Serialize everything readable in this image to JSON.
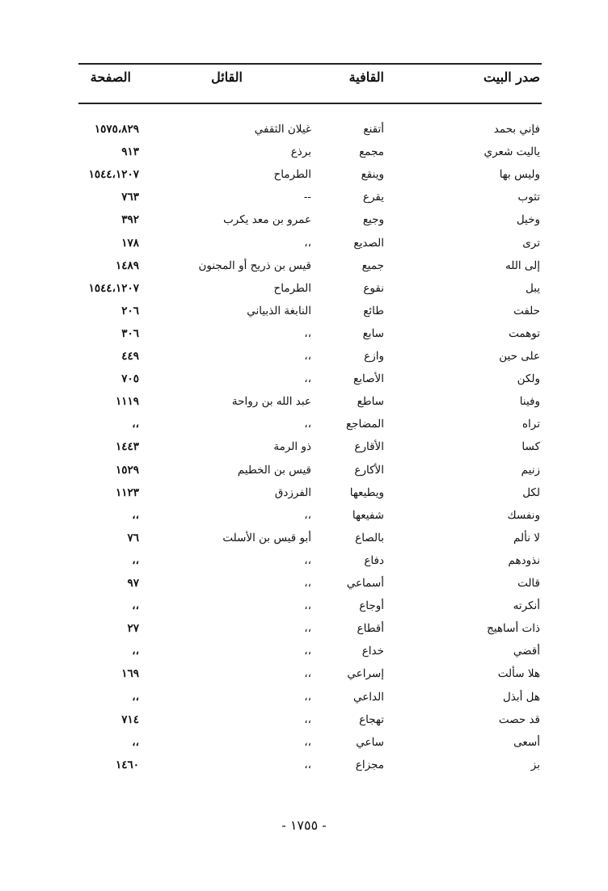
{
  "headers": {
    "verse_opening": "صدر البيت",
    "rhyme": "القافية",
    "poet": "القائل",
    "page": "الصفحة"
  },
  "rows": [
    {
      "verse": "فإني بحمد",
      "rhyme": "أتقنع",
      "poet": "غيلان الثقفي",
      "page": "١٥٧٥،٨٢٩"
    },
    {
      "verse": "ياليت شعري",
      "rhyme": "مجمع",
      "poet": "برذع",
      "page": "٩١٣"
    },
    {
      "verse": "وليس بها",
      "rhyme": "وينقع",
      "poet": "الطرماح",
      "page": "١٥٤٤،١٢٠٧"
    },
    {
      "verse": "تثوب",
      "rhyme": "يقرع",
      "poet": "--",
      "page": "٧٦٣"
    },
    {
      "verse": "وخيل",
      "rhyme": "وجيع",
      "poet": "عمرو بن معد يكرب",
      "page": "٣٩٢"
    },
    {
      "verse": "ترى",
      "rhyme": "الصديع",
      "poet": "،،",
      "page": "١٧٨"
    },
    {
      "verse": "إلى الله",
      "rhyme": "جميع",
      "poet": "قيس بن ذريح أو المجنون",
      "page": "١٤٨٩"
    },
    {
      "verse": "يبل",
      "rhyme": "نقوع",
      "poet": "الطرماح",
      "page": "١٥٤٤،١٢٠٧"
    },
    {
      "verse": "حلفت",
      "rhyme": "طائع",
      "poet": "النابغة الذبياني",
      "page": "٢٠٦"
    },
    {
      "verse": "توهمت",
      "rhyme": "سابع",
      "poet": "،،",
      "page": "٣٠٦"
    },
    {
      "verse": "على حين",
      "rhyme": "وازع",
      "poet": "،،",
      "page": "٤٤٩"
    },
    {
      "verse": "ولكن",
      "rhyme": "الأصابع",
      "poet": "،،",
      "page": "٧٠٥"
    },
    {
      "verse": "وفينا",
      "rhyme": "ساطع",
      "poet": "عبد الله بن رواحة",
      "page": "١١١٩"
    },
    {
      "verse": "تراه",
      "rhyme": "المضاجع",
      "poet": "،،",
      "page": "،،"
    },
    {
      "verse": "كسا",
      "rhyme": "الأقارع",
      "poet": "ذو الرمة",
      "page": "١٤٤٣"
    },
    {
      "verse": "زنيم",
      "rhyme": "الأكارع",
      "poet": "قيس بن الخطيم",
      "page": "١٥٢٩"
    },
    {
      "verse": "لكل",
      "rhyme": "ويطيعها",
      "poet": "الفرزدق",
      "page": "١١٢٣"
    },
    {
      "verse": "ونفسك",
      "rhyme": "شفيعها",
      "poet": "،،",
      "page": "،،"
    },
    {
      "verse": "لا نألم",
      "rhyme": "بالصاع",
      "poet": "أبو قيس بن الأسلت",
      "page": "٧٦"
    },
    {
      "verse": "نذودهم",
      "rhyme": "دفاع",
      "poet": "،،",
      "page": "،،"
    },
    {
      "verse": "قالت",
      "rhyme": "أسماعي",
      "poet": "،،",
      "page": "٩٧"
    },
    {
      "verse": "أنكرته",
      "rhyme": "أوجاع",
      "poet": "،،",
      "page": "،،"
    },
    {
      "verse": "ذات أساهيج",
      "rhyme": "أقطاع",
      "poet": "،،",
      "page": "٢٧"
    },
    {
      "verse": "أقضي",
      "rhyme": "خداع",
      "poet": "،،",
      "page": "،،"
    },
    {
      "verse": "هلا سألت",
      "rhyme": "إسراعي",
      "poet": "،،",
      "page": "١٦٩"
    },
    {
      "verse": "هل أبذل",
      "rhyme": "الداعي",
      "poet": "،،",
      "page": "،،"
    },
    {
      "verse": "قد حصت",
      "rhyme": "تهجاع",
      "poet": "،،",
      "page": "٧١٤"
    },
    {
      "verse": "أسعى",
      "rhyme": "ساعي",
      "poet": "،،",
      "page": "،،"
    },
    {
      "verse": "بز",
      "rhyme": "مجزاع",
      "poet": "،،",
      "page": "١٤٦٠"
    }
  ],
  "page_number": "- ١٧٥٥ -"
}
